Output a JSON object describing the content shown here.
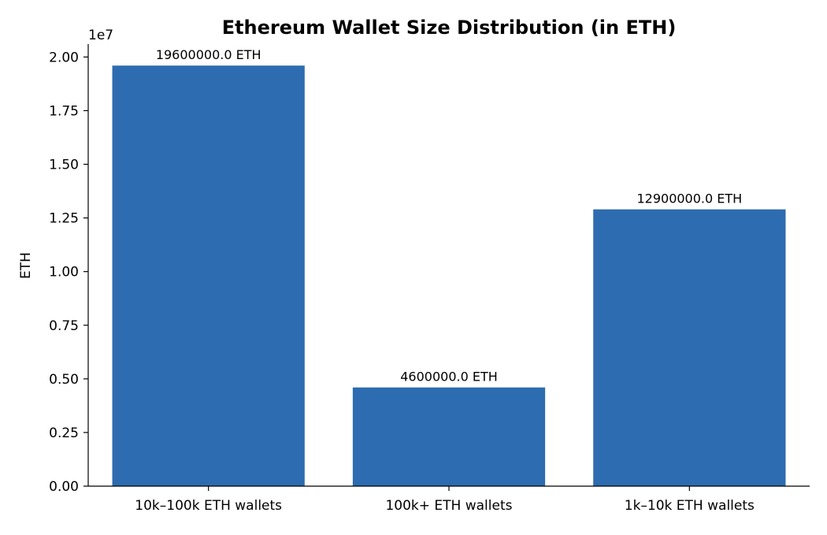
{
  "chart_data": {
    "type": "bar",
    "title": "Ethereum Wallet Size Distribution (in ETH)",
    "xlabel": "",
    "ylabel": "ETH",
    "axis_offset_label": "1e7",
    "categories": [
      "10k–100k ETH wallets",
      "100k+ ETH wallets",
      "1k–10k ETH wallets"
    ],
    "values": [
      19600000,
      4600000,
      12900000
    ],
    "value_labels": [
      "19600000.0 ETH",
      "4600000.0 ETH",
      "12900000.0 ETH"
    ],
    "yticks": [
      0,
      2500000,
      5000000,
      7500000,
      10000000,
      12500000,
      15000000,
      17500000,
      20000000
    ],
    "ytick_labels": [
      "0.00",
      "0.25",
      "0.50",
      "0.75",
      "1.00",
      "1.25",
      "1.50",
      "1.75",
      "2.00"
    ],
    "ylim": [
      0,
      20600000
    ],
    "grid": false,
    "bar_color": "#2d6cb0",
    "axis_color": "#000000"
  }
}
